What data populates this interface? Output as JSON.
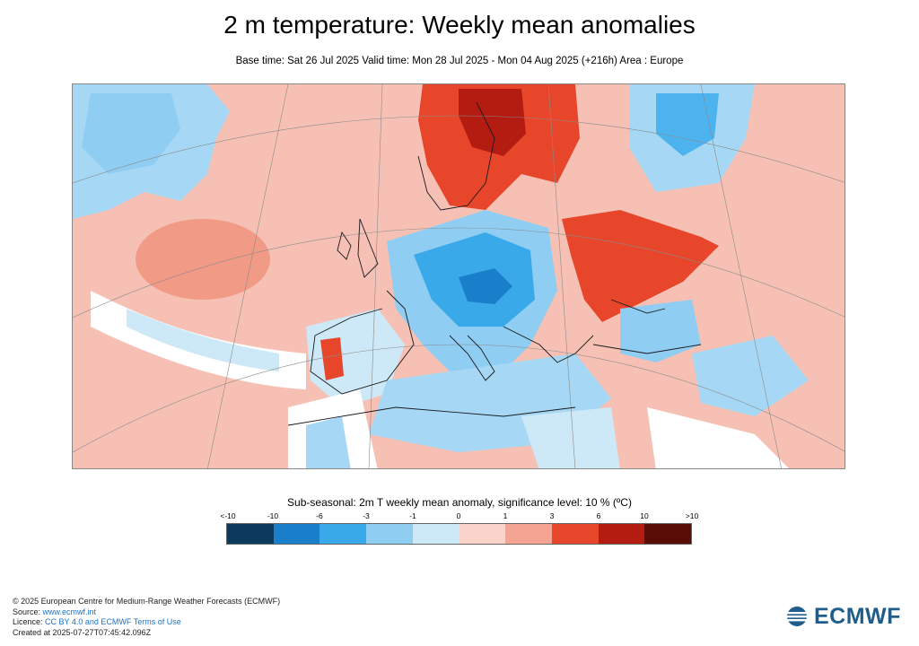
{
  "header": {
    "title": "2 m temperature: Weekly mean anomalies",
    "subtitle": "Base time: Sat 26 Jul 2025 Valid time: Mon 28 Jul 2025 - Mon 04 Aug 2025 (+216h) Area : Europe"
  },
  "map": {
    "region": "Europe",
    "background_color": "#f6c1b4",
    "regions": [
      {
        "name": "northern-atlantic-cold",
        "level": "-3",
        "color": "#a6d8f5"
      },
      {
        "name": "atlantic-warm-blob",
        "level": "3",
        "color": "#f19a85"
      },
      {
        "name": "scandinavia-warm",
        "level": "6",
        "color": "#e8462a"
      },
      {
        "name": "finland-core-warm",
        "level": "10",
        "color": "#b41c12"
      },
      {
        "name": "central-europe-cold",
        "level": "-6",
        "color": "#3aa9ea"
      },
      {
        "name": "alps-cold",
        "level": "-10",
        "color": "#1a7fca"
      },
      {
        "name": "ukraine-russia-warm",
        "level": "6",
        "color": "#e8462a"
      },
      {
        "name": "iberia-warm",
        "level": "6",
        "color": "#e8462a"
      },
      {
        "name": "mediterranean-cold",
        "level": "-3",
        "color": "#a6d8f5"
      },
      {
        "name": "north-africa-neutral",
        "level": "0",
        "color": "#ffffff"
      }
    ]
  },
  "legend": {
    "title": "Sub-seasonal: 2m T weekly mean anomaly, significance level: 10 % (ºC)",
    "ticks": [
      "<-10",
      "-10",
      "-6",
      "-3",
      "-1",
      "0",
      "1",
      "3",
      "6",
      "10",
      ">10"
    ],
    "colors": [
      "#0b3a5c",
      "#1a7fca",
      "#3aa9ea",
      "#8fcdf3",
      "#cde9f8",
      "#f9d2c9",
      "#f5a393",
      "#e8462a",
      "#b41c12",
      "#5a0c06"
    ]
  },
  "footer": {
    "copyright": "© 2025 European Centre for Medium-Range Weather Forecasts (ECMWF)",
    "source_label": "Source: ",
    "source_link": "www.ecmwf.int",
    "licence_label": "Licence: ",
    "licence_link": "CC BY 4.0 and ECMWF Terms of Use",
    "created": "Created at 2025-07-27T07:45:42.096Z"
  },
  "logo": {
    "text": "ECMWF",
    "color": "#1f5e8c"
  }
}
